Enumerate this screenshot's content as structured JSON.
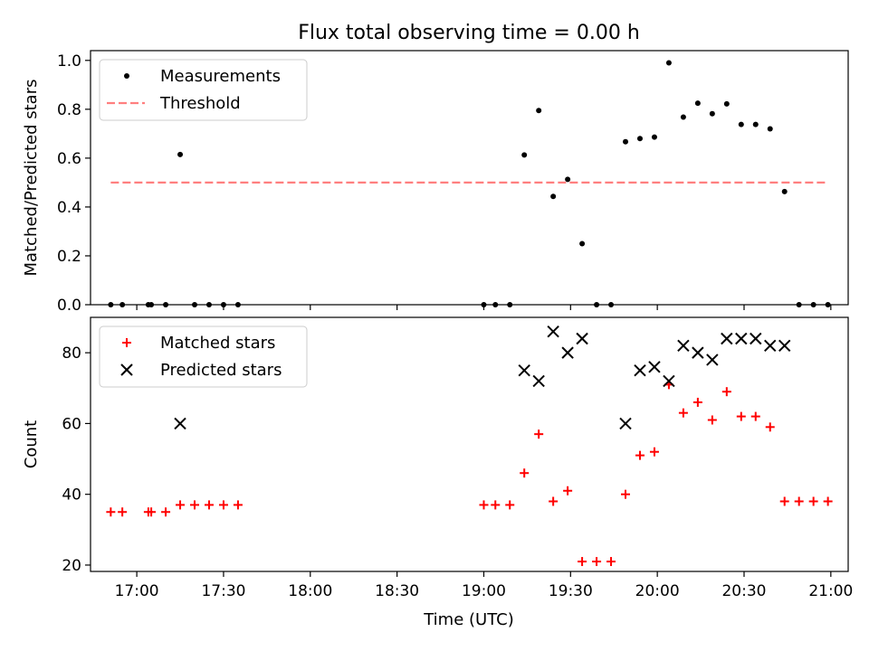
{
  "figure": {
    "title": "Flux total observing time = 0.00 h",
    "xlabel": "Time (UTC)",
    "xticks": [
      {
        "t": "17:00",
        "label": "17:00"
      },
      {
        "t": "17:30",
        "label": "17:30"
      },
      {
        "t": "18:00",
        "label": "18:00"
      },
      {
        "t": "18:30",
        "label": "18:30"
      },
      {
        "t": "19:00",
        "label": "19:00"
      },
      {
        "t": "19:30",
        "label": "19:30"
      },
      {
        "t": "20:00",
        "label": "20:00"
      },
      {
        "t": "20:30",
        "label": "20:30"
      },
      {
        "t": "21:00",
        "label": "21:00"
      }
    ],
    "xlim": [
      "16:44",
      "21:06"
    ]
  },
  "chart_data": [
    {
      "type": "scatter",
      "ylabel": "Matched/Predicted stars",
      "ylim": [
        0,
        1.04
      ],
      "yticks": [
        "0.0",
        "0.2",
        "0.4",
        "0.6",
        "0.8",
        "1.0"
      ],
      "legend_position": "upper-left",
      "series": [
        {
          "name": "Measurements",
          "marker": "dot",
          "color": "#000000",
          "points": [
            [
              "16:51",
              0.0
            ],
            [
              "16:55",
              0.0
            ],
            [
              "17:04",
              0.0
            ],
            [
              "17:05",
              0.0
            ],
            [
              "17:10",
              0.0
            ],
            [
              "17:15",
              0.615
            ],
            [
              "17:20",
              0.0
            ],
            [
              "17:25",
              0.0
            ],
            [
              "17:30",
              0.0
            ],
            [
              "17:35",
              0.0
            ],
            [
              "19:00",
              0.0
            ],
            [
              "19:04",
              0.0
            ],
            [
              "19:09",
              0.0
            ],
            [
              "19:14",
              0.613
            ],
            [
              "19:19",
              0.795
            ],
            [
              "19:24",
              0.443
            ],
            [
              "19:29",
              0.513
            ],
            [
              "19:34",
              0.25
            ],
            [
              "19:39",
              0.0
            ],
            [
              "19:44",
              0.0
            ],
            [
              "19:49",
              0.667
            ],
            [
              "19:54",
              0.68
            ],
            [
              "19:59",
              0.686
            ],
            [
              "20:04",
              0.99
            ],
            [
              "20:09",
              0.768
            ],
            [
              "20:14",
              0.825
            ],
            [
              "20:19",
              0.782
            ],
            [
              "20:24",
              0.822
            ],
            [
              "20:29",
              0.738
            ],
            [
              "20:34",
              0.738
            ],
            [
              "20:39",
              0.72
            ],
            [
              "20:44",
              0.463
            ],
            [
              "20:49",
              0.0
            ],
            [
              "20:54",
              0.0
            ],
            [
              "20:59",
              0.0
            ]
          ]
        },
        {
          "name": "Threshold",
          "type": "line",
          "style": "dashed",
          "color": "#ff7f7f",
          "points": [
            [
              "16:51",
              0.5
            ],
            [
              "20:59",
              0.5
            ]
          ]
        }
      ]
    },
    {
      "type": "scatter",
      "ylabel": "Count",
      "ylim": [
        18.2,
        90
      ],
      "yticks": [
        "20",
        "40",
        "60",
        "80"
      ],
      "legend_position": "upper-left",
      "series": [
        {
          "name": "Matched stars",
          "marker": "plus",
          "color": "#ff0000",
          "points": [
            [
              "16:51",
              35
            ],
            [
              "16:55",
              35
            ],
            [
              "17:04",
              35
            ],
            [
              "17:05",
              35
            ],
            [
              "17:10",
              35
            ],
            [
              "17:15",
              37
            ],
            [
              "17:20",
              37
            ],
            [
              "17:25",
              37
            ],
            [
              "17:30",
              37
            ],
            [
              "17:35",
              37
            ],
            [
              "19:00",
              37
            ],
            [
              "19:04",
              37
            ],
            [
              "19:09",
              37
            ],
            [
              "19:14",
              46
            ],
            [
              "19:19",
              57
            ],
            [
              "19:24",
              38
            ],
            [
              "19:29",
              41
            ],
            [
              "19:34",
              21
            ],
            [
              "19:39",
              21
            ],
            [
              "19:44",
              21
            ],
            [
              "19:49",
              40
            ],
            [
              "19:54",
              51
            ],
            [
              "19:59",
              52
            ],
            [
              "20:04",
              71
            ],
            [
              "20:09",
              63
            ],
            [
              "20:14",
              66
            ],
            [
              "20:19",
              61
            ],
            [
              "20:24",
              69
            ],
            [
              "20:29",
              62
            ],
            [
              "20:34",
              62
            ],
            [
              "20:39",
              59
            ],
            [
              "20:44",
              38
            ],
            [
              "20:49",
              38
            ],
            [
              "20:54",
              38
            ],
            [
              "20:59",
              38
            ]
          ]
        },
        {
          "name": "Predicted stars",
          "marker": "x",
          "color": "#000000",
          "points": [
            [
              "17:15",
              60
            ],
            [
              "19:14",
              75
            ],
            [
              "19:19",
              72
            ],
            [
              "19:24",
              86
            ],
            [
              "19:29",
              80
            ],
            [
              "19:34",
              84
            ],
            [
              "19:49",
              60
            ],
            [
              "19:54",
              75
            ],
            [
              "19:59",
              76
            ],
            [
              "20:04",
              72
            ],
            [
              "20:09",
              82
            ],
            [
              "20:14",
              80
            ],
            [
              "20:19",
              78
            ],
            [
              "20:24",
              84
            ],
            [
              "20:29",
              84
            ],
            [
              "20:34",
              84
            ],
            [
              "20:39",
              82
            ],
            [
              "20:44",
              82
            ]
          ]
        }
      ]
    }
  ]
}
